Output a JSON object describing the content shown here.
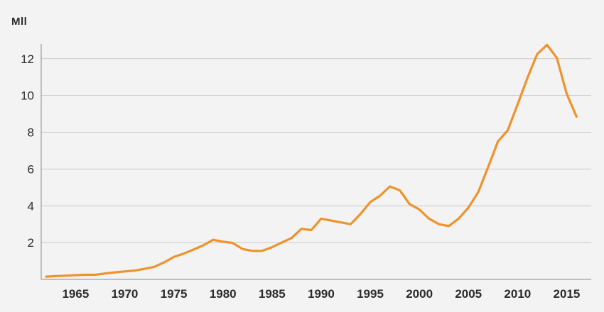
{
  "chart_data": {
    "type": "line",
    "title": "",
    "xlabel": "",
    "ylabel": "Mll",
    "xlim": [
      1961.5,
      2017.5
    ],
    "ylim": [
      0,
      12.8
    ],
    "grid": true,
    "x_ticks": [
      1965,
      1970,
      1975,
      1980,
      1985,
      1990,
      1995,
      2000,
      2005,
      2010,
      2015
    ],
    "y_ticks": [
      2,
      4,
      6,
      8,
      10,
      12
    ],
    "colors": {
      "line": "#f0922b",
      "grid": "#c9c9c9",
      "axis": "#8a8a8a",
      "text": "#2b2b2b",
      "background": "#f3f3f3"
    },
    "series": [
      {
        "x": [
          1962,
          1963,
          1964,
          1965,
          1966,
          1967,
          1968,
          1969,
          1970,
          1971,
          1972,
          1973,
          1974,
          1975,
          1976,
          1977,
          1978,
          1979,
          1980,
          1981,
          1982,
          1983,
          1984,
          1985,
          1986,
          1987,
          1988,
          1989,
          1990,
          1991,
          1992,
          1993,
          1994,
          1995,
          1996,
          1997,
          1998,
          1999,
          2000,
          2001,
          2002,
          2003,
          2004,
          2005,
          2006,
          2007,
          2008,
          2009,
          2010,
          2011,
          2012,
          2013,
          2014,
          2015,
          2016
        ],
        "values": [
          0.15,
          0.18,
          0.2,
          0.23,
          0.25,
          0.25,
          0.32,
          0.38,
          0.43,
          0.48,
          0.57,
          0.68,
          0.92,
          1.22,
          1.4,
          1.62,
          1.85,
          2.15,
          2.05,
          1.98,
          1.65,
          1.55,
          1.55,
          1.75,
          2.0,
          2.25,
          2.75,
          2.68,
          3.3,
          3.2,
          3.1,
          3.0,
          3.55,
          4.2,
          4.55,
          5.05,
          4.85,
          4.1,
          3.8,
          3.3,
          3.0,
          2.9,
          3.3,
          3.9,
          4.75,
          6.1,
          7.5,
          8.1,
          9.5,
          10.95,
          12.25,
          12.75,
          12.05,
          10.1,
          8.85
        ]
      }
    ]
  }
}
